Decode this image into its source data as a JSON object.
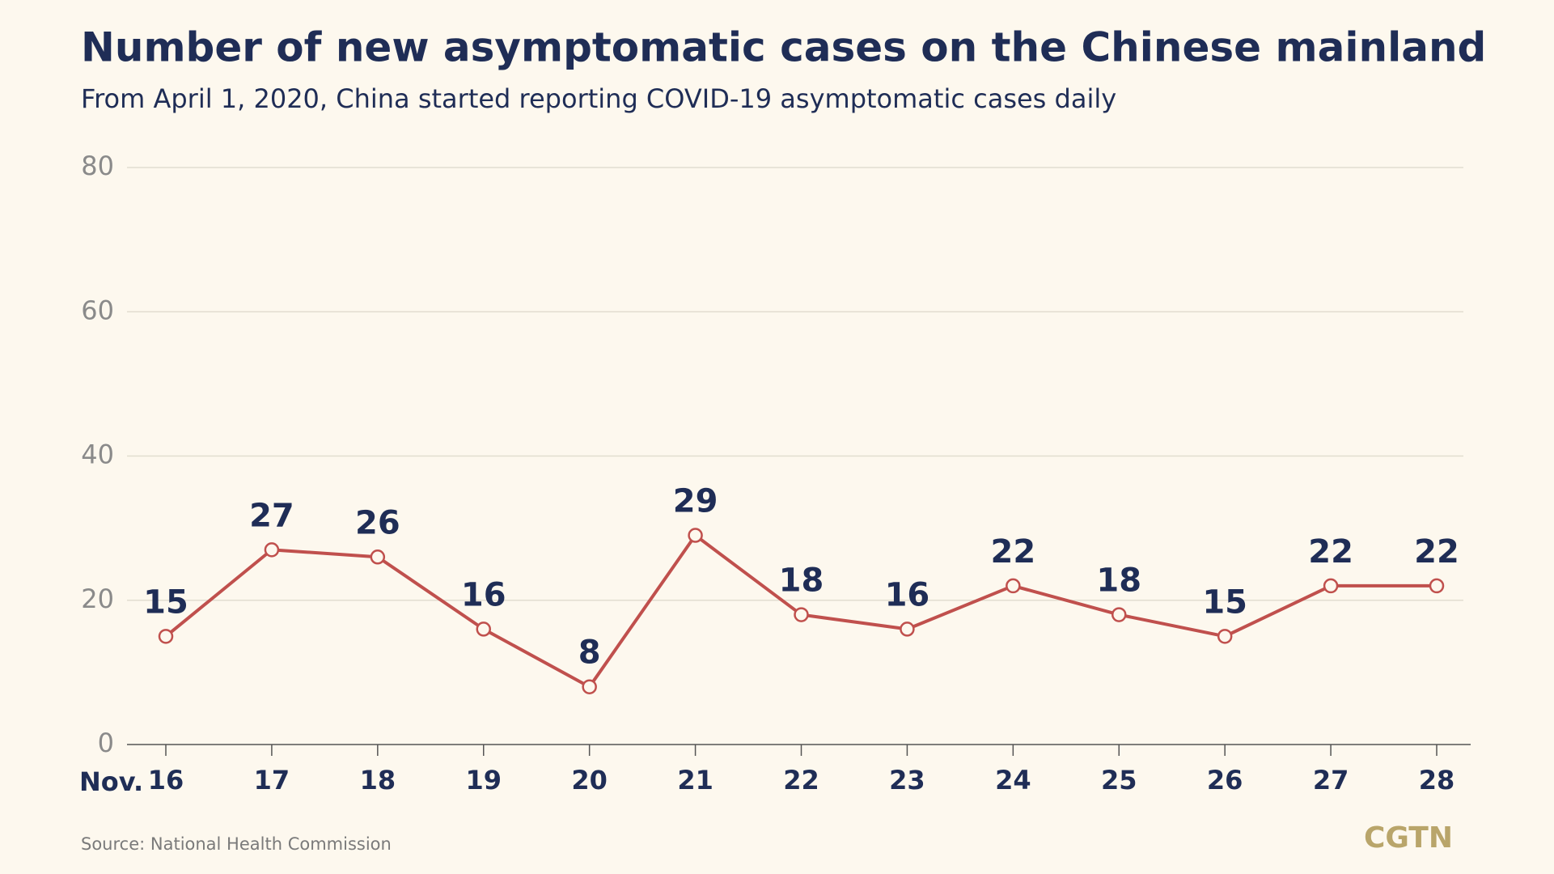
{
  "chart_data": {
    "type": "line",
    "title": "Number of new asymptomatic cases on the Chinese mainland",
    "subtitle": "From April 1, 2020, China started reporting COVID-19 asymptomatic cases daily",
    "x_label": "Nov.",
    "categories": [
      "16",
      "17",
      "18",
      "19",
      "20",
      "21",
      "22",
      "23",
      "24",
      "25",
      "26",
      "27",
      "28"
    ],
    "values": [
      15,
      27,
      26,
      16,
      8,
      29,
      18,
      16,
      22,
      18,
      15,
      22,
      22
    ],
    "color": "#c0504d",
    "ylim": [
      0,
      80
    ],
    "yticks": [
      0,
      20,
      40,
      60,
      80
    ],
    "grid": true,
    "source": "Source: National Health Commission",
    "logo": "CGTN"
  }
}
